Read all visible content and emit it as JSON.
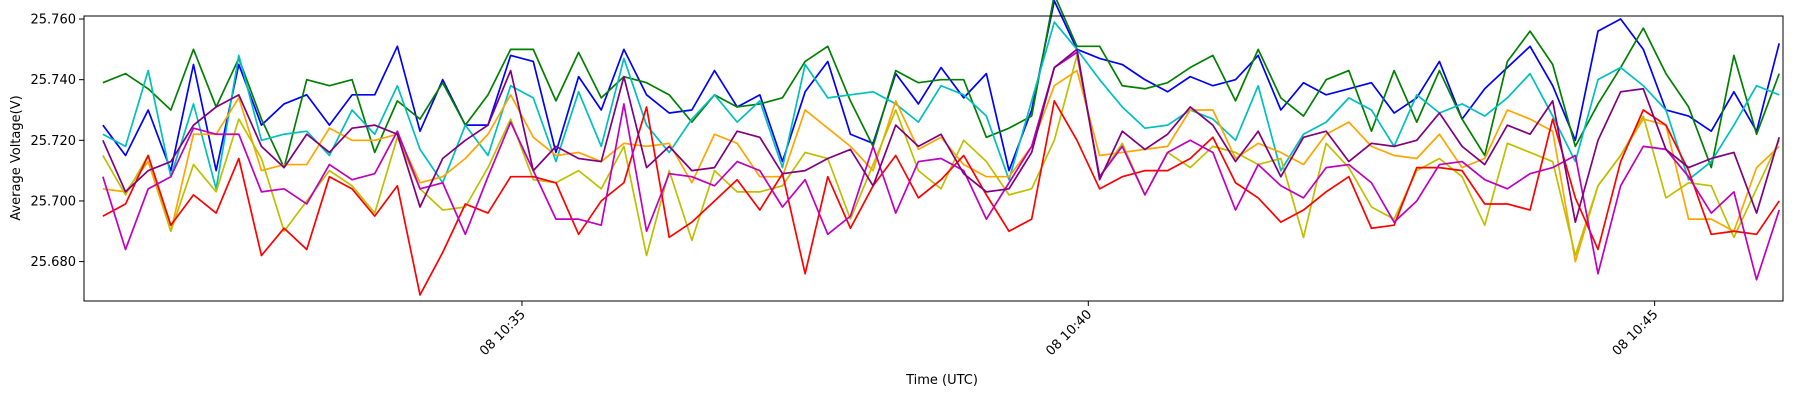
{
  "chart_data": {
    "type": "line",
    "xlabel": "Time (UTC)",
    "ylabel": "Average Voltage(V)",
    "x": [
      "10:31:18",
      "10:31:30",
      "10:31:42",
      "10:31:54",
      "10:32:06",
      "10:32:18",
      "10:32:30",
      "10:32:42",
      "10:32:54",
      "10:33:06",
      "10:33:18",
      "10:33:30",
      "10:33:42",
      "10:33:54",
      "10:34:06",
      "10:34:18",
      "10:34:30",
      "10:34:42",
      "10:34:54",
      "10:35:06",
      "10:35:18",
      "10:35:30",
      "10:35:42",
      "10:35:54",
      "10:36:06",
      "10:36:18",
      "10:36:30",
      "10:36:42",
      "10:36:54",
      "10:37:06",
      "10:37:18",
      "10:37:30",
      "10:37:42",
      "10:37:54",
      "10:38:06",
      "10:38:18",
      "10:38:30",
      "10:38:42",
      "10:38:54",
      "10:39:06",
      "10:39:18",
      "10:39:30",
      "10:39:42",
      "10:39:54",
      "10:40:06",
      "10:40:18",
      "10:40:30",
      "10:40:42",
      "10:40:54",
      "10:41:06",
      "10:41:18",
      "10:41:30",
      "10:41:42",
      "10:41:54",
      "10:42:06",
      "10:42:18",
      "10:42:30",
      "10:42:42",
      "10:42:54",
      "10:43:06",
      "10:43:18",
      "10:43:30",
      "10:43:42",
      "10:43:54",
      "10:44:06",
      "10:44:18",
      "10:44:30",
      "10:44:42",
      "10:44:54",
      "10:45:06",
      "10:45:18",
      "10:45:30",
      "10:45:42",
      "10:45:54",
      "10:46:06"
    ],
    "xlim": [
      "10:31:08",
      "10:46:08"
    ],
    "xticks": [
      {
        "value": "10:35:00",
        "label": "08 10:35"
      },
      {
        "value": "10:40:00",
        "label": "08 10:40"
      },
      {
        "value": "10:45:00",
        "label": "08 10:45"
      }
    ],
    "ylim": [
      25.667,
      25.761
    ],
    "yticks": [
      {
        "value": 25.68,
        "label": "25.680"
      },
      {
        "value": 25.7,
        "label": "25.700"
      },
      {
        "value": 25.72,
        "label": "25.720"
      },
      {
        "value": 25.74,
        "label": "25.740"
      },
      {
        "value": 25.76,
        "label": "25.760"
      }
    ],
    "grid": false,
    "series": [
      {
        "color": "#0000ff",
        "values": [
          25.725,
          25.715,
          25.73,
          25.71,
          25.745,
          25.71,
          25.745,
          25.725,
          25.732,
          25.735,
          25.725,
          25.735,
          25.735,
          25.751,
          25.723,
          25.74,
          25.725,
          25.725,
          25.748,
          25.746,
          25.716,
          25.741,
          25.73,
          25.75,
          25.735,
          25.729,
          25.73,
          25.743,
          25.731,
          25.735,
          25.713,
          25.736,
          25.746,
          25.722,
          25.719,
          25.742,
          25.732,
          25.744,
          25.734,
          25.742,
          25.71,
          25.73,
          25.766,
          25.75,
          25.747,
          25.745,
          25.74,
          25.736,
          25.741,
          25.738,
          25.74,
          25.748,
          25.73,
          25.739,
          25.735,
          25.737,
          25.739,
          25.729,
          25.734,
          25.746,
          25.727,
          25.737,
          25.744,
          25.751,
          25.738,
          25.72,
          25.756,
          25.76,
          25.75,
          25.73,
          25.728,
          25.723,
          25.736,
          25.723,
          25.752
        ]
      },
      {
        "color": "#008000",
        "values": [
          25.739,
          25.742,
          25.737,
          25.73,
          25.75,
          25.731,
          25.747,
          25.727,
          25.711,
          25.74,
          25.738,
          25.74,
          25.716,
          25.733,
          25.727,
          25.739,
          25.725,
          25.735,
          25.75,
          25.75,
          25.733,
          25.749,
          25.734,
          25.741,
          25.739,
          25.735,
          25.726,
          25.735,
          25.731,
          25.732,
          25.734,
          25.746,
          25.751,
          25.733,
          25.718,
          25.743,
          25.739,
          25.74,
          25.74,
          25.721,
          25.724,
          25.728,
          25.768,
          25.751,
          25.751,
          25.738,
          25.737,
          25.739,
          25.744,
          25.748,
          25.733,
          25.75,
          25.734,
          25.728,
          25.74,
          25.743,
          25.723,
          25.743,
          25.726,
          25.743,
          25.727,
          25.715,
          25.746,
          25.756,
          25.745,
          25.718,
          25.732,
          25.744,
          25.757,
          25.742,
          25.731,
          25.711,
          25.748,
          25.722,
          25.742
        ]
      },
      {
        "color": "#00bfbf",
        "values": [
          25.722,
          25.718,
          25.743,
          25.708,
          25.732,
          25.704,
          25.748,
          25.72,
          25.722,
          25.723,
          25.715,
          25.73,
          25.722,
          25.738,
          25.717,
          25.706,
          25.725,
          25.715,
          25.738,
          25.734,
          25.713,
          25.736,
          25.718,
          25.747,
          25.725,
          25.716,
          25.727,
          25.735,
          25.726,
          25.733,
          25.711,
          25.745,
          25.734,
          25.735,
          25.736,
          25.732,
          25.726,
          25.738,
          25.735,
          25.728,
          25.707,
          25.733,
          25.759,
          25.75,
          25.74,
          25.731,
          25.724,
          25.725,
          25.73,
          25.727,
          25.72,
          25.738,
          25.71,
          25.722,
          25.726,
          25.734,
          25.73,
          25.718,
          25.735,
          25.729,
          25.732,
          25.728,
          25.734,
          25.742,
          25.728,
          25.713,
          25.74,
          25.744,
          25.738,
          25.73,
          25.707,
          25.713,
          25.725,
          25.738,
          25.735
        ]
      },
      {
        "color": "#ffa500",
        "values": [
          25.704,
          25.703,
          25.713,
          25.69,
          25.722,
          25.722,
          25.734,
          25.71,
          25.712,
          25.712,
          25.724,
          25.72,
          25.72,
          25.722,
          25.706,
          25.708,
          25.714,
          25.722,
          25.735,
          25.721,
          25.715,
          25.716,
          25.713,
          25.719,
          25.718,
          25.719,
          25.706,
          25.722,
          25.719,
          25.708,
          25.708,
          25.73,
          25.724,
          25.718,
          25.71,
          25.733,
          25.717,
          25.721,
          25.712,
          25.708,
          25.708,
          25.718,
          25.738,
          25.743,
          25.715,
          25.716,
          25.717,
          25.718,
          25.73,
          25.73,
          25.714,
          25.719,
          25.716,
          25.712,
          25.722,
          25.726,
          25.718,
          25.715,
          25.714,
          25.722,
          25.711,
          25.714,
          25.73,
          25.727,
          25.723,
          25.68,
          25.705,
          25.715,
          25.727,
          25.725,
          25.694,
          25.694,
          25.69,
          25.711,
          25.718
        ]
      },
      {
        "color": "#bfbf00",
        "values": [
          25.715,
          25.702,
          25.715,
          25.69,
          25.712,
          25.703,
          25.727,
          25.714,
          25.69,
          25.7,
          25.71,
          25.705,
          25.696,
          25.721,
          25.704,
          25.697,
          25.698,
          25.711,
          25.727,
          25.707,
          25.706,
          25.71,
          25.704,
          25.718,
          25.682,
          25.71,
          25.687,
          25.71,
          25.703,
          25.703,
          25.705,
          25.716,
          25.714,
          25.694,
          25.712,
          25.73,
          25.71,
          25.704,
          25.72,
          25.713,
          25.702,
          25.704,
          25.72,
          25.748,
          25.708,
          25.719,
          25.702,
          25.716,
          25.711,
          25.718,
          25.716,
          25.712,
          25.714,
          25.688,
          25.719,
          25.711,
          25.698,
          25.694,
          25.71,
          25.714,
          25.708,
          25.692,
          25.719,
          25.716,
          25.713,
          25.682,
          25.705,
          25.715,
          25.728,
          25.701,
          25.706,
          25.705,
          25.688,
          25.704,
          25.72
        ]
      },
      {
        "color": "#ff0000",
        "values": [
          25.695,
          25.699,
          25.715,
          25.692,
          25.702,
          25.696,
          25.714,
          25.682,
          25.691,
          25.684,
          25.708,
          25.704,
          25.695,
          25.705,
          25.669,
          25.683,
          25.699,
          25.696,
          25.708,
          25.708,
          25.706,
          25.689,
          25.7,
          25.706,
          25.731,
          25.688,
          25.693,
          25.7,
          25.707,
          25.697,
          25.709,
          25.676,
          25.708,
          25.691,
          25.705,
          25.715,
          25.701,
          25.707,
          25.715,
          25.702,
          25.69,
          25.694,
          25.733,
          25.72,
          25.704,
          25.708,
          25.71,
          25.71,
          25.714,
          25.721,
          25.706,
          25.701,
          25.693,
          25.697,
          25.703,
          25.708,
          25.691,
          25.692,
          25.711,
          25.711,
          25.71,
          25.699,
          25.699,
          25.697,
          25.727,
          25.701,
          25.684,
          25.713,
          25.73,
          25.725,
          25.71,
          25.689,
          25.69,
          25.689,
          25.7
        ]
      },
      {
        "color": "#bf00bf",
        "values": [
          25.708,
          25.684,
          25.704,
          25.708,
          25.724,
          25.722,
          25.722,
          25.703,
          25.704,
          25.699,
          25.712,
          25.707,
          25.709,
          25.723,
          25.704,
          25.706,
          25.689,
          25.708,
          25.726,
          25.71,
          25.694,
          25.694,
          25.692,
          25.732,
          25.69,
          25.709,
          25.708,
          25.705,
          25.713,
          25.71,
          25.698,
          25.707,
          25.689,
          25.695,
          25.718,
          25.696,
          25.713,
          25.714,
          25.71,
          25.694,
          25.706,
          25.718,
          25.744,
          25.749,
          25.708,
          25.718,
          25.702,
          25.716,
          25.72,
          25.716,
          25.697,
          25.712,
          25.705,
          25.701,
          25.711,
          25.712,
          25.706,
          25.693,
          25.7,
          25.712,
          25.713,
          25.707,
          25.704,
          25.709,
          25.711,
          25.715,
          25.676,
          25.705,
          25.718,
          25.717,
          25.708,
          25.696,
          25.703,
          25.674,
          25.697
        ]
      },
      {
        "color": "#800080",
        "values": [
          25.72,
          25.703,
          25.71,
          25.713,
          25.725,
          25.731,
          25.735,
          25.718,
          25.711,
          25.722,
          25.716,
          25.724,
          25.725,
          25.722,
          25.698,
          25.714,
          25.72,
          25.725,
          25.743,
          25.71,
          25.718,
          25.714,
          25.713,
          25.741,
          25.711,
          25.718,
          25.71,
          25.711,
          25.723,
          25.721,
          25.709,
          25.71,
          25.714,
          25.717,
          25.705,
          25.725,
          25.718,
          25.722,
          25.709,
          25.703,
          25.704,
          25.716,
          25.744,
          25.75,
          25.707,
          25.723,
          25.717,
          25.722,
          25.731,
          25.725,
          25.713,
          25.723,
          25.708,
          25.721,
          25.723,
          25.713,
          25.719,
          25.718,
          25.72,
          25.729,
          25.718,
          25.712,
          25.725,
          25.722,
          25.733,
          25.693,
          25.72,
          25.736,
          25.737,
          25.717,
          25.711,
          25.714,
          25.716,
          25.696,
          25.721
        ]
      }
    ]
  }
}
